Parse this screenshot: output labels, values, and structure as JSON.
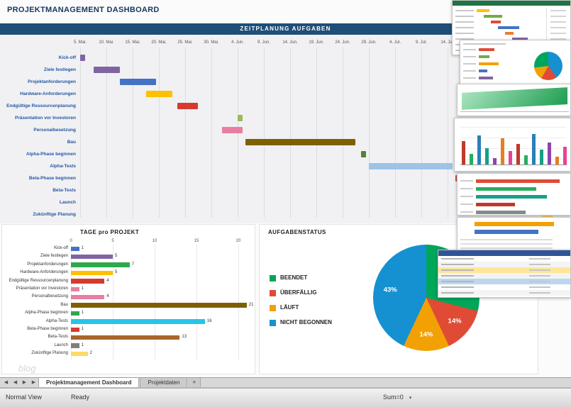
{
  "app": {
    "title": "PROJEKTMANAGEMENT DASHBOARD",
    "watermark": "blog"
  },
  "chart_data": [
    {
      "type": "gantt",
      "title": "ZEITPLANUNG AUFGABEN",
      "x_ticks": [
        "5. Mai.",
        "10. Mai.",
        "15. Mai.",
        "20. Mai.",
        "25. Mai.",
        "30. Mai.",
        "4. Jun.",
        "9. Jun.",
        "14. Jun.",
        "19. Jun.",
        "24. Jun.",
        "29. Jun.",
        "4. Jul.",
        "9. Jul.",
        "14. Jul."
      ],
      "tasks": [
        {
          "name": "Kick-off",
          "start_day": 0,
          "duration_days": 1,
          "color": "#8064A2"
        },
        {
          "name": "Ziele festlegen",
          "start_day": 2.5,
          "duration_days": 5,
          "color": "#8064A2"
        },
        {
          "name": "Projektanforderungen",
          "start_day": 7.5,
          "duration_days": 7,
          "color": "#4472C4"
        },
        {
          "name": "Hardware-Anforderungen",
          "start_day": 12.5,
          "duration_days": 5,
          "color": "#FFC000"
        },
        {
          "name": "Endgültige Ressourcenplanung",
          "start_day": 18.5,
          "duration_days": 4,
          "color": "#D63A2F"
        },
        {
          "name": "Präsentation vor Investoren",
          "start_day": 30,
          "duration_days": 1,
          "color": "#9BBB59"
        },
        {
          "name": "Personalbesetzung",
          "start_day": 27,
          "duration_days": 4,
          "color": "#E87EA1"
        },
        {
          "name": "Bau",
          "start_day": 31.5,
          "duration_days": 21,
          "color": "#7F6000"
        },
        {
          "name": "Alpha-Phase beginnen",
          "start_day": 53.5,
          "duration_days": 1,
          "color": "#548235"
        },
        {
          "name": "Alpha-Tests",
          "start_day": 55,
          "duration_days": 16,
          "color": "#9DC3E6"
        },
        {
          "name": "Beta-Phase beginnen",
          "start_day": 71.5,
          "duration_days": 1,
          "color": "#C0504D"
        },
        {
          "name": "Beta-Tests",
          "start_day": 73,
          "duration_days": 13,
          "color": "#A9652B"
        },
        {
          "name": "Launch",
          "start_day": 86.5,
          "duration_days": 1,
          "color": "#7F7F7F"
        },
        {
          "name": "Zukünftige Planung",
          "start_day": 88,
          "duration_days": 2,
          "color": "#FFD966"
        }
      ]
    },
    {
      "type": "bar",
      "title": "TAGE pro PROJEKT",
      "orientation": "horizontal",
      "categories": [
        "Kick-off",
        "Ziele festlegen",
        "Projektanforderungen",
        "Hardware-Anforderungen",
        "Endgültige Ressourcenplanung",
        "Präsentation vor Investoren",
        "Personalbesetzung",
        "Bau",
        "Alpha-Phase beginnen",
        "Alpha-Tests",
        "Beta-Phase beginnen",
        "Beta-Tests",
        "Launch",
        "Zukünftige Planung"
      ],
      "values": [
        1,
        5,
        7,
        5,
        4,
        1,
        4,
        21,
        1,
        16,
        1,
        13,
        1,
        2
      ],
      "colors": [
        "#4472C4",
        "#8064A2",
        "#2EA84F",
        "#FFC000",
        "#D63A2F",
        "#E87EA1",
        "#E87EA1",
        "#7F6000",
        "#2EA84F",
        "#29C4E8",
        "#D63A2F",
        "#A9652B",
        "#7F7F7F",
        "#FFD966"
      ],
      "axis_ticks": [
        0,
        5,
        10,
        15,
        20
      ],
      "xlim": [
        0,
        22
      ],
      "grid": true
    },
    {
      "type": "pie",
      "title": "AUFGABENSTATUS",
      "legend_position": "left",
      "slices": [
        {
          "label": "BEENDET",
          "pct": 29,
          "color": "#00A65A",
          "label_visible": false
        },
        {
          "label": "ÜBERFÄLLIG",
          "pct": 14,
          "color": "#E04B35",
          "label_visible": true
        },
        {
          "label": "LÄUFT",
          "pct": 14,
          "color": "#F2A104",
          "label_visible": true
        },
        {
          "label": "NICHT BEGONNEN",
          "pct": 43,
          "color": "#1591D1",
          "label_visible": true
        }
      ]
    }
  ],
  "preview_stack": [
    {
      "kind": "sheet-gantt"
    },
    {
      "kind": "sheet-pie"
    },
    {
      "kind": "green-area"
    },
    {
      "kind": "column-chart"
    },
    {
      "kind": "stacked-bars"
    },
    {
      "kind": "orange-bars"
    },
    {
      "kind": "table"
    }
  ],
  "sheet_tabs": {
    "nav_arrows": [
      "◀",
      "◀",
      "▶",
      "▶"
    ],
    "tabs": [
      {
        "label": "Projektmanagement Dashboard",
        "active": true
      },
      {
        "label": "Projektdaten",
        "active": false
      }
    ],
    "add_label": "+"
  },
  "status_bar": {
    "view_mode": "Normal View",
    "state": "Ready",
    "aggregate": "Sum=0",
    "caret": "▾"
  }
}
